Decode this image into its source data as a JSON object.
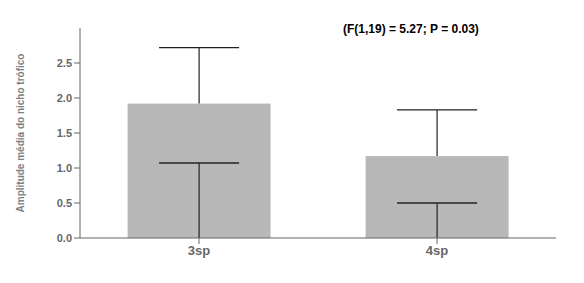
{
  "chart_data": {
    "type": "bar",
    "categories": [
      "3sp",
      "4sp"
    ],
    "values": [
      1.92,
      1.17
    ],
    "medians": [
      1.07,
      0.5
    ],
    "whisker_upper": [
      2.72,
      1.83
    ],
    "color": "#b8b8b8",
    "y_label": "Amplitude média do nicho trófico",
    "ylim": [
      0.0,
      3.0
    ],
    "yticks": [
      {
        "value": 0.0,
        "label": "0.0"
      },
      {
        "value": 0.5,
        "label": "0.5"
      },
      {
        "value": 1.0,
        "label": "1.0"
      },
      {
        "value": 1.5,
        "label": "1.5"
      },
      {
        "value": 2.0,
        "label": "2.0"
      },
      {
        "value": 2.5,
        "label": "2.5"
      }
    ],
    "annotations": [
      "(F(1,19) = 5.27; P = 0.03)"
    ],
    "grid": false
  }
}
